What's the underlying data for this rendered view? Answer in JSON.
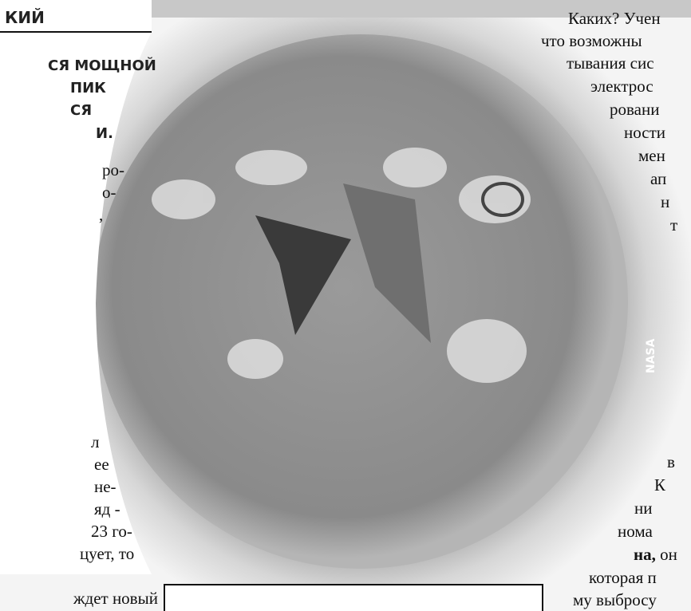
{
  "left_column": {
    "heading": "КИЙ",
    "lead_lines": [
      "СЯ МОЩНОЙ",
      "ПИК",
      "СЯ",
      "И."
    ],
    "body_lines": [
      "ро-",
      "о-",
      ",",
      "л",
      "ее",
      "не-",
      "яд -",
      "23 го-",
      "цует, то",
      "ждет новый"
    ]
  },
  "right_column": {
    "lines": [
      "Каких? Учен",
      "что возможны",
      "тывания сис",
      "электрос",
      "ровани",
      "ности",
      "мен",
      "ап",
      "н",
      "т",
      "в",
      "К",
      "ни",
      "нома"
    ],
    "bold_start": "на,",
    "bold_rest": " он",
    "tail_lines": [
      "которая п",
      "му выбросу"
    ]
  },
  "photo": {
    "credit": "NASA"
  }
}
